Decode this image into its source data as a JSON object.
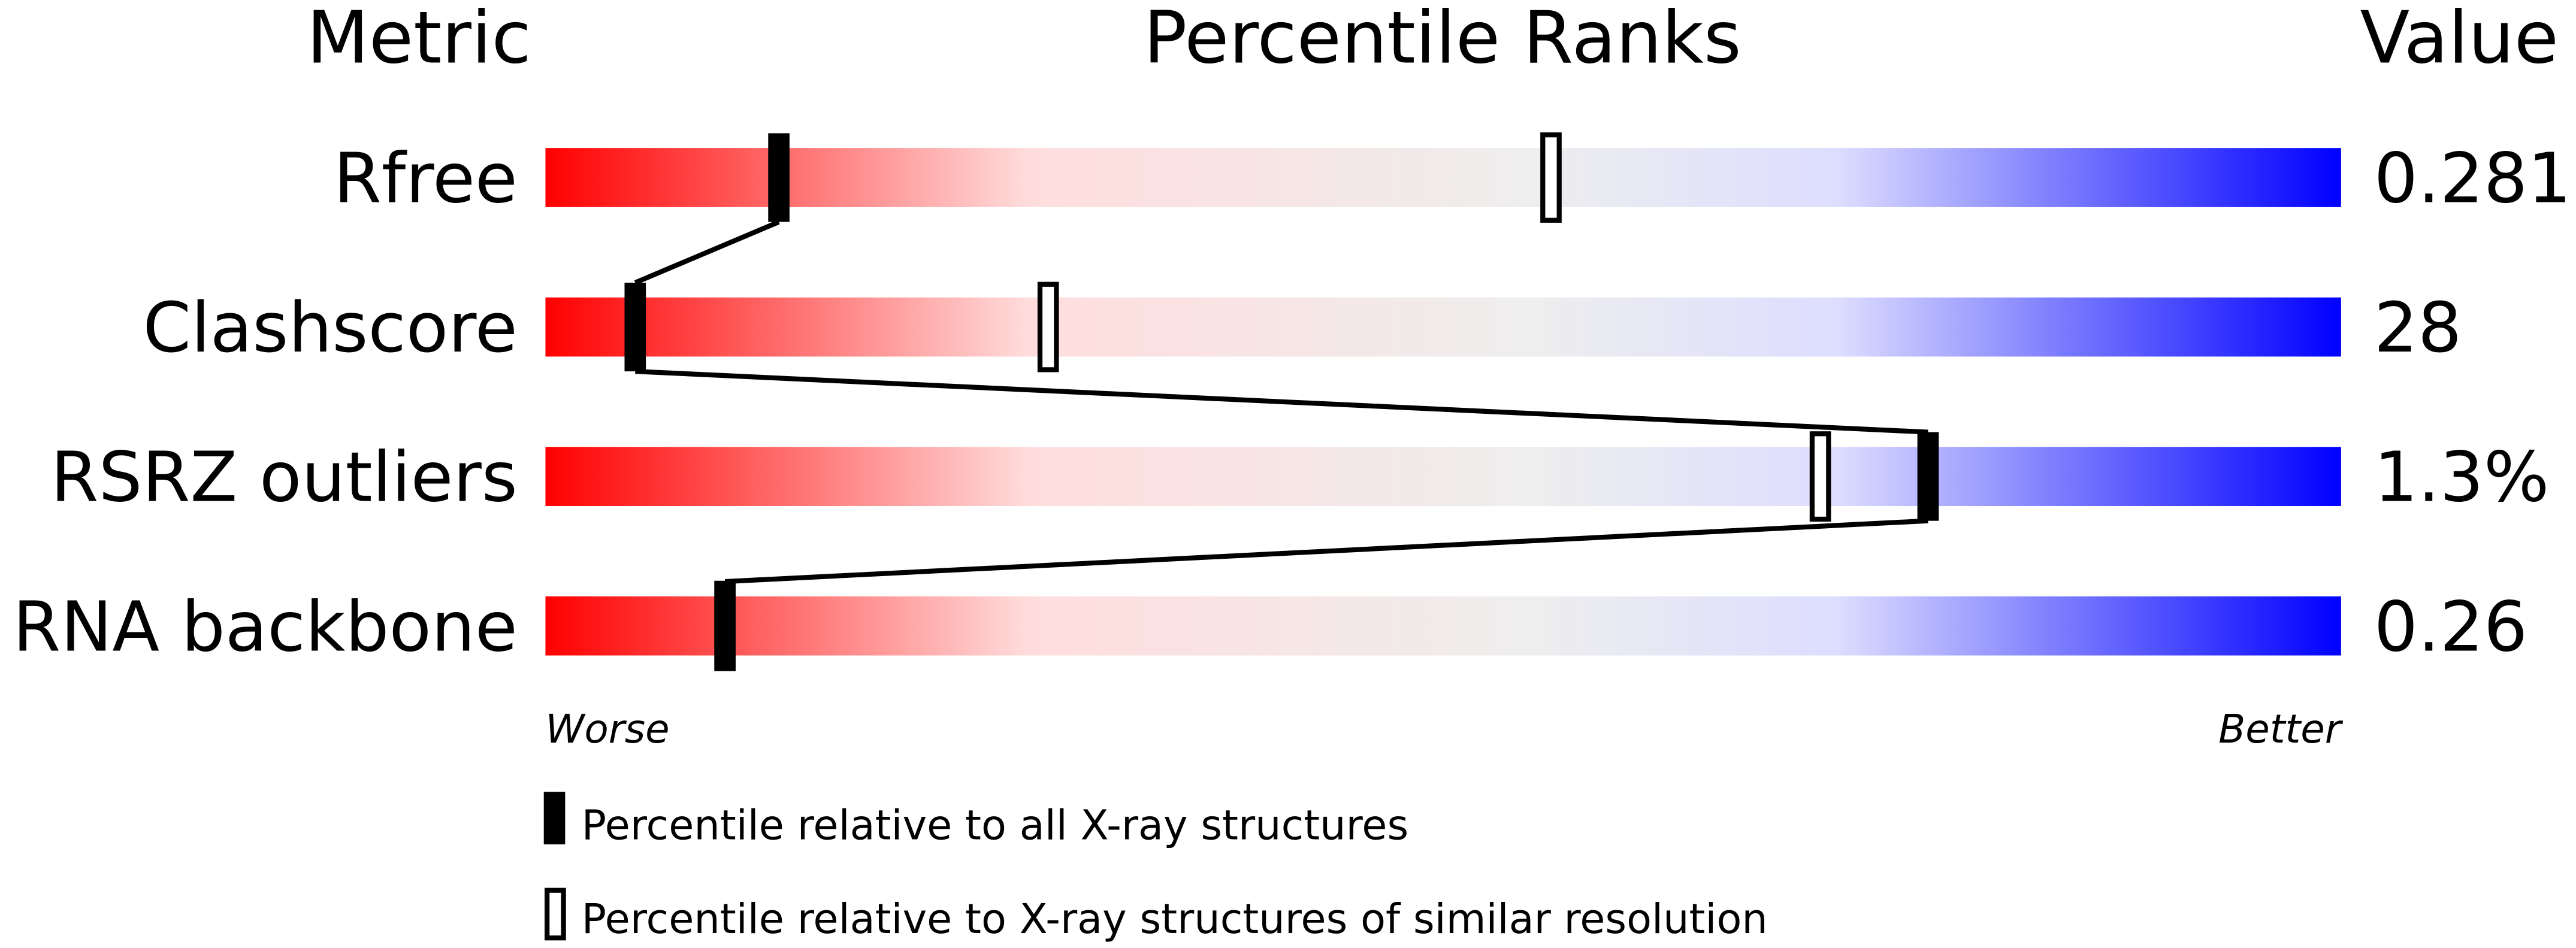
{
  "chart_data": {
    "type": "percentile-bar",
    "headers": {
      "metric": "Metric",
      "ranks": "Percentile Ranks",
      "value": "Value"
    },
    "xlim": [
      0,
      100
    ],
    "axis_labels": {
      "left": "Worse",
      "right": "Better"
    },
    "gradient_colors": [
      "#ff0000",
      "#ffdddd",
      "#eeeeee",
      "#ddddff",
      "#0000ff"
    ],
    "metrics": [
      {
        "name": "Rfree",
        "value": "0.281",
        "percentile_all": 13,
        "percentile_similar": 56
      },
      {
        "name": "Clashscore",
        "value": "28",
        "percentile_all": 5,
        "percentile_similar": 28
      },
      {
        "name": "RSRZ outliers",
        "value": "1.3%",
        "percentile_all": 77,
        "percentile_similar": 71
      },
      {
        "name": "RNA backbone",
        "value": "0.26",
        "percentile_all": 10,
        "percentile_similar": 10
      }
    ],
    "legend": [
      {
        "marker": "filled",
        "label": "Percentile relative to all X-ray structures"
      },
      {
        "marker": "open",
        "label": "Percentile relative to X-ray structures of similar resolution"
      }
    ]
  }
}
